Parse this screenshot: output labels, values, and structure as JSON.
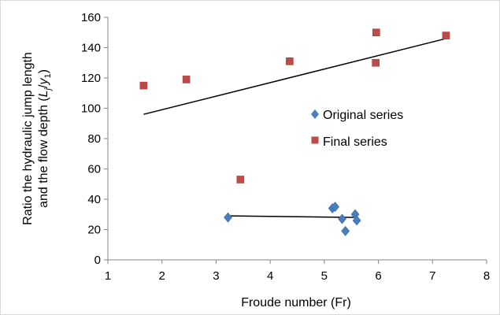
{
  "chart_data": {
    "type": "scatter",
    "xlabel": "Froude number (Fr)",
    "ylabel_line1": "Ratio the hydraulic jump length",
    "ylabel_line2_prefix": "and the flow depth (",
    "ylabel_math_L": "L",
    "ylabel_math_j": "j",
    "ylabel_math_slash": "/",
    "ylabel_math_y": "y",
    "ylabel_math_1": "1",
    "ylabel_line2_suffix": ")",
    "xlim": [
      1,
      8
    ],
    "ylim": [
      0,
      160
    ],
    "x_ticks": [
      "1",
      "2",
      "3",
      "4",
      "5",
      "6",
      "7",
      "8"
    ],
    "y_ticks": [
      "0",
      "20",
      "40",
      "60",
      "80",
      "100",
      "120",
      "140",
      "160"
    ],
    "grid": false,
    "legend_position": "right-middle",
    "series": [
      {
        "name": "Original series",
        "marker": "diamond",
        "color": "#4a7ebb",
        "x": [
          3.22,
          5.15,
          5.2,
          5.33,
          5.39,
          5.57,
          5.6
        ],
        "y": [
          28,
          34,
          35,
          27,
          19,
          30,
          26
        ],
        "trendline": {
          "x": [
            3.22,
            5.6
          ],
          "y": [
            29,
            28
          ]
        }
      },
      {
        "name": "Final series",
        "marker": "square",
        "color": "#be4b48",
        "x": [
          1.66,
          2.45,
          3.45,
          4.36,
          5.95,
          5.96,
          7.25
        ],
        "y": [
          115,
          119,
          53,
          131,
          130,
          150,
          148
        ],
        "trendline": {
          "x": [
            1.66,
            7.25
          ],
          "y": [
            96,
            146
          ]
        }
      }
    ]
  }
}
